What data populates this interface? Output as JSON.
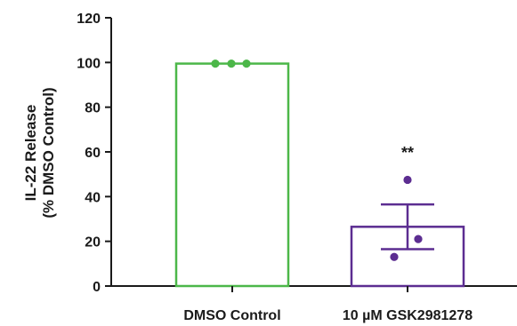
{
  "chart_data": {
    "type": "bar",
    "ylabel_lines": [
      "IL-22 Release",
      "(% DMSO Control)"
    ],
    "ylim": [
      0,
      120
    ],
    "yticks": [
      0,
      20,
      40,
      60,
      80,
      100,
      120
    ],
    "ytick_labels": [
      "0",
      "20",
      "40",
      "60",
      "80",
      "100",
      "120"
    ],
    "categories": [
      "DMSO Control",
      "10 µM GSK2981278"
    ],
    "values": [
      99.5,
      26.5
    ],
    "error": [
      0,
      10
    ],
    "points": [
      [
        99.5,
        99.5,
        99.5
      ],
      [
        47.5,
        21,
        13
      ]
    ],
    "colors": [
      "#4cb749",
      "#5c2d91"
    ],
    "significance": [
      null,
      "**"
    ],
    "grid": false,
    "legend": "none"
  }
}
